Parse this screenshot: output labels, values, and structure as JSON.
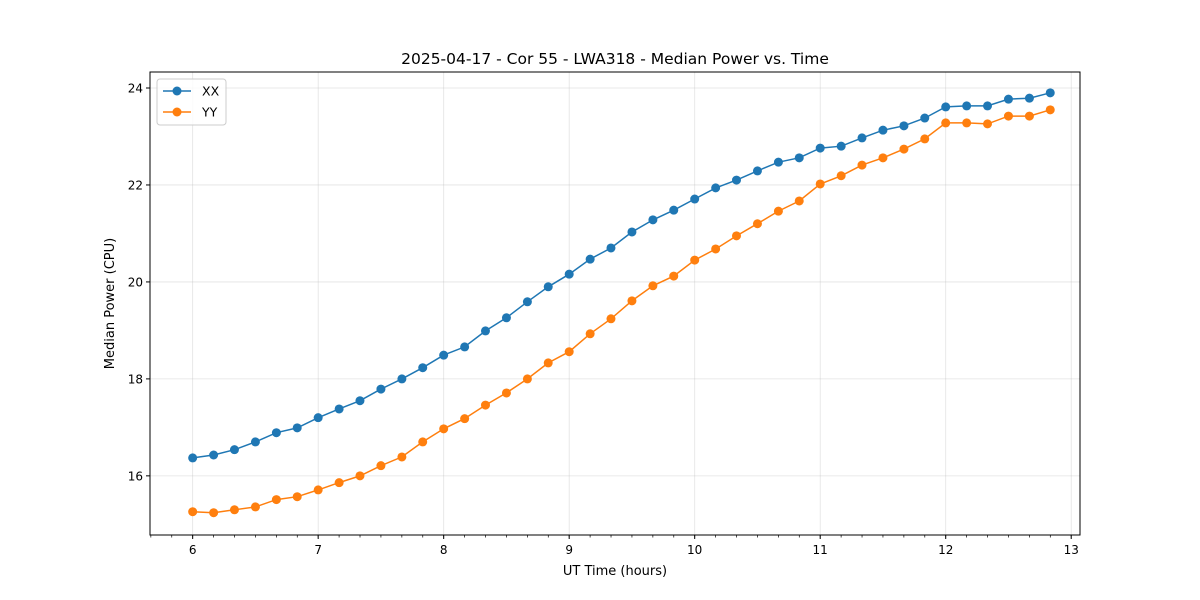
{
  "chart_data": {
    "type": "line",
    "title": "2025-04-17 - Cor 55 - LWA318 - Median Power vs. Time",
    "xlabel": "UT Time (hours)",
    "ylabel": "Median Power (CPU)",
    "xlim": [
      5.66,
      13.07
    ],
    "ylim": [
      14.78,
      24.33
    ],
    "xticks": [
      6,
      7,
      8,
      9,
      10,
      11,
      12,
      13
    ],
    "yticks": [
      16,
      18,
      20,
      22,
      24
    ],
    "grid": true,
    "legend_position": "top-left",
    "x": [
      6.0,
      6.167,
      6.333,
      6.5,
      6.667,
      6.833,
      7.0,
      7.167,
      7.333,
      7.5,
      7.667,
      7.833,
      8.0,
      8.167,
      8.333,
      8.5,
      8.667,
      8.833,
      9.0,
      9.167,
      9.333,
      9.5,
      9.667,
      9.833,
      10.0,
      10.167,
      10.333,
      10.5,
      10.667,
      10.833,
      11.0,
      11.167,
      11.333,
      11.5,
      11.667,
      11.833,
      12.0,
      12.167,
      12.333,
      12.5,
      12.667,
      12.833
    ],
    "series": [
      {
        "name": "XX",
        "color": "#1f77b4",
        "values": [
          16.37,
          16.43,
          16.54,
          16.7,
          16.89,
          16.99,
          17.2,
          17.38,
          17.55,
          17.79,
          18.0,
          18.23,
          18.49,
          18.66,
          18.99,
          19.26,
          19.59,
          19.9,
          20.16,
          20.47,
          20.7,
          21.03,
          21.28,
          21.48,
          21.71,
          21.94,
          22.1,
          22.29,
          22.47,
          22.56,
          22.76,
          22.8,
          22.97,
          23.13,
          23.22,
          23.38,
          23.61,
          23.63,
          23.63,
          23.77,
          23.79,
          23.9
        ]
      },
      {
        "name": "YY",
        "color": "#ff7f0e",
        "values": [
          15.26,
          15.24,
          15.3,
          15.36,
          15.51,
          15.57,
          15.71,
          15.86,
          16.0,
          16.21,
          16.39,
          16.7,
          16.97,
          17.18,
          17.46,
          17.71,
          18.0,
          18.33,
          18.56,
          18.93,
          19.24,
          19.61,
          19.92,
          20.12,
          20.45,
          20.68,
          20.95,
          21.2,
          21.46,
          21.67,
          22.02,
          22.19,
          22.41,
          22.56,
          22.74,
          22.95,
          23.28,
          23.28,
          23.26,
          23.42,
          23.42,
          23.55
        ]
      }
    ]
  }
}
